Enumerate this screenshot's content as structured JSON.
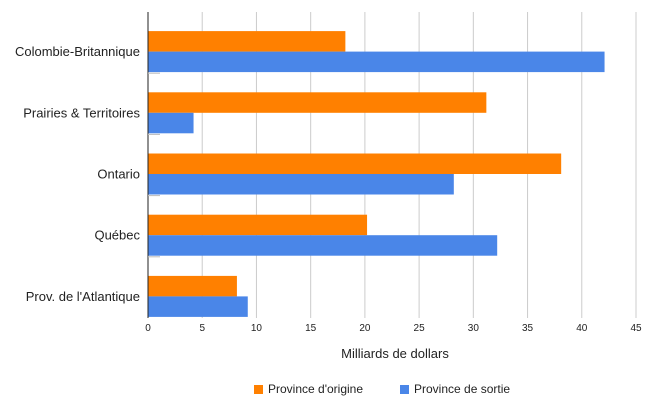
{
  "chart_data": {
    "type": "bar",
    "orientation": "horizontal",
    "categories": [
      "Colombie-Britannique",
      "Prairies & Territoires",
      "Ontario",
      "Québec",
      "Prov. de l'Atlantique"
    ],
    "series": [
      {
        "name": "Province d'origine",
        "color": "#FF8000",
        "values": [
          18.2,
          31.2,
          38.1,
          20.2,
          8.2
        ]
      },
      {
        "name": "Province de sortie",
        "color": "#4A86E8",
        "values": [
          42.1,
          4.2,
          28.2,
          32.2,
          9.2
        ]
      }
    ],
    "xlabel": "Milliards de dollars",
    "xlim": [
      0,
      45
    ],
    "xticks": [
      0,
      5,
      10,
      15,
      20,
      25,
      30,
      35,
      40,
      45
    ],
    "grid": true,
    "legend": "bottom"
  }
}
